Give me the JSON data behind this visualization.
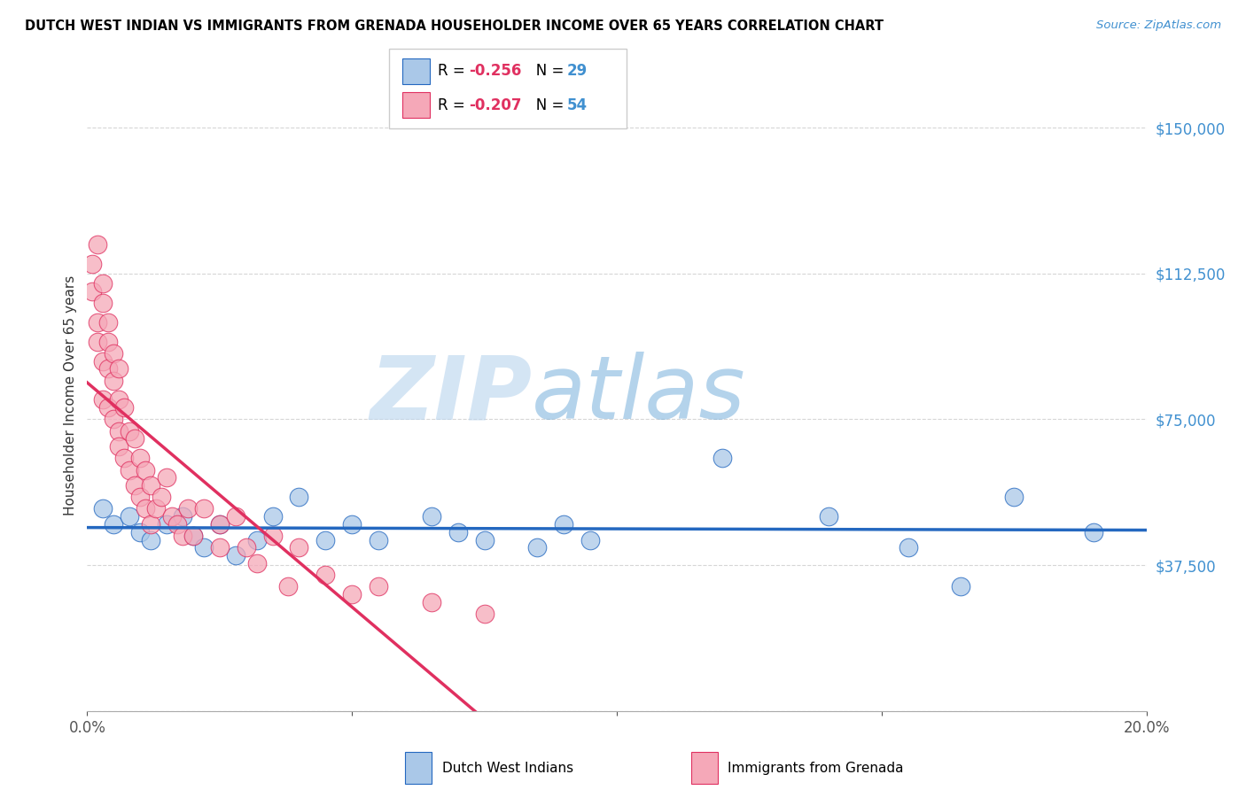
{
  "title": "DUTCH WEST INDIAN VS IMMIGRANTS FROM GRENADA HOUSEHOLDER INCOME OVER 65 YEARS CORRELATION CHART",
  "source": "Source: ZipAtlas.com",
  "ylabel": "Householder Income Over 65 years",
  "xlim": [
    0.0,
    0.2
  ],
  "ylim": [
    0,
    162500
  ],
  "yticks": [
    0,
    37500,
    75000,
    112500,
    150000
  ],
  "ytick_labels": [
    "",
    "$37,500",
    "$75,000",
    "$112,500",
    "$150,000"
  ],
  "xticks": [
    0.0,
    0.05,
    0.1,
    0.15,
    0.2
  ],
  "xtick_labels": [
    "0.0%",
    "",
    "",
    "",
    "20.0%"
  ],
  "blue_R": -0.256,
  "blue_N": 29,
  "pink_R": -0.207,
  "pink_N": 54,
  "blue_label": "Dutch West Indians",
  "pink_label": "Immigrants from Grenada",
  "blue_color": "#aac8e8",
  "pink_color": "#f5a8b8",
  "blue_line_color": "#2468c0",
  "pink_line_color": "#e03060",
  "watermark_zip": "ZIP",
  "watermark_atlas": "atlas",
  "blue_scatter_x": [
    0.003,
    0.005,
    0.008,
    0.01,
    0.012,
    0.015,
    0.018,
    0.02,
    0.022,
    0.025,
    0.028,
    0.032,
    0.035,
    0.04,
    0.045,
    0.05,
    0.055,
    0.065,
    0.07,
    0.075,
    0.085,
    0.09,
    0.095,
    0.12,
    0.14,
    0.155,
    0.165,
    0.175,
    0.19
  ],
  "blue_scatter_y": [
    52000,
    48000,
    50000,
    46000,
    44000,
    48000,
    50000,
    45000,
    42000,
    48000,
    40000,
    44000,
    50000,
    55000,
    44000,
    48000,
    44000,
    50000,
    46000,
    44000,
    42000,
    48000,
    44000,
    65000,
    50000,
    42000,
    32000,
    55000,
    46000
  ],
  "pink_scatter_x": [
    0.001,
    0.001,
    0.002,
    0.002,
    0.003,
    0.003,
    0.003,
    0.004,
    0.004,
    0.004,
    0.005,
    0.005,
    0.005,
    0.006,
    0.006,
    0.006,
    0.007,
    0.007,
    0.008,
    0.008,
    0.009,
    0.009,
    0.01,
    0.01,
    0.011,
    0.011,
    0.012,
    0.012,
    0.013,
    0.014,
    0.015,
    0.016,
    0.017,
    0.018,
    0.019,
    0.02,
    0.022,
    0.025,
    0.025,
    0.028,
    0.03,
    0.032,
    0.035,
    0.038,
    0.04,
    0.045,
    0.05,
    0.055,
    0.065,
    0.075,
    0.002,
    0.003,
    0.004,
    0.006
  ],
  "pink_scatter_y": [
    108000,
    115000,
    100000,
    95000,
    90000,
    105000,
    80000,
    95000,
    88000,
    78000,
    92000,
    75000,
    85000,
    80000,
    72000,
    68000,
    78000,
    65000,
    72000,
    62000,
    70000,
    58000,
    65000,
    55000,
    62000,
    52000,
    58000,
    48000,
    52000,
    55000,
    60000,
    50000,
    48000,
    45000,
    52000,
    45000,
    52000,
    48000,
    42000,
    50000,
    42000,
    38000,
    45000,
    32000,
    42000,
    35000,
    30000,
    32000,
    28000,
    25000,
    120000,
    110000,
    100000,
    88000
  ]
}
